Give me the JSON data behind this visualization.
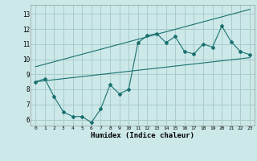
{
  "title": "",
  "xlabel": "Humidex (Indice chaleur)",
  "bg_color": "#cce8e8",
  "grid_color": "#aacccc",
  "line_color": "#1a7070",
  "xlim": [
    -0.5,
    23.5
  ],
  "ylim": [
    5.6,
    13.6
  ],
  "xticks": [
    0,
    1,
    2,
    3,
    4,
    5,
    6,
    7,
    8,
    9,
    10,
    11,
    12,
    13,
    14,
    15,
    16,
    17,
    18,
    19,
    20,
    21,
    22,
    23
  ],
  "yticks": [
    6,
    7,
    8,
    9,
    10,
    11,
    12,
    13
  ],
  "line1_x": [
    0,
    1,
    2,
    3,
    4,
    5,
    6,
    7,
    8,
    9,
    10,
    11,
    12,
    13,
    14,
    15,
    16,
    17,
    18,
    19,
    20,
    21,
    22,
    23
  ],
  "line1_y": [
    8.5,
    8.7,
    7.5,
    6.5,
    6.2,
    6.2,
    5.8,
    6.7,
    8.3,
    7.7,
    8.0,
    11.1,
    11.55,
    11.7,
    11.1,
    11.5,
    10.5,
    10.35,
    11.0,
    10.8,
    12.2,
    11.15,
    10.5,
    10.3
  ],
  "line2_x": [
    0,
    23
  ],
  "line2_y": [
    8.5,
    10.1
  ],
  "line3_x": [
    0,
    23
  ],
  "line3_y": [
    9.5,
    13.3
  ]
}
